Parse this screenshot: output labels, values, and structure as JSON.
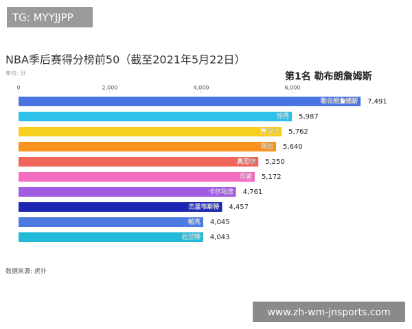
{
  "watermark": "TG: MYYJJPP",
  "footer_watermark": "www.zh-wm-jnsports.com",
  "chart_data": {
    "type": "barh",
    "title": "NBA季后赛得分榜前50（截至2021年5月22日）",
    "unit_label": "单位: 分",
    "highlight": "第1名 勒布朗詹姆斯",
    "source": "数据来源: 虎扑",
    "categories": [
      "勒布朗詹姆斯",
      "乔丹",
      "贾巴尔",
      "科比",
      "奥尼尔",
      "邓肯",
      "卡尔马龙",
      "杰里韦斯特",
      "帕克",
      "杜兰特"
    ],
    "values": [
      7491,
      5987,
      5762,
      5640,
      5250,
      5172,
      4761,
      4457,
      4045,
      4043
    ],
    "value_labels": [
      "7,491",
      "5,987",
      "5,762",
      "5,640",
      "5,250",
      "5,172",
      "4,761",
      "4,457",
      "4,045",
      "4,043"
    ],
    "colors": [
      "#4a74e2",
      "#2fc1ea",
      "#f7d01f",
      "#f8931f",
      "#f0665b",
      "#f26cc0",
      "#a25ce2",
      "#1b26b2",
      "#4c7ae0",
      "#22bad8"
    ],
    "xlim": [
      0,
      8000
    ],
    "xticks": [
      0,
      {
        "value": 2000,
        "label": "2,000"
      },
      {
        "value": 4000,
        "label": "4,000"
      },
      {
        "value": 6000,
        "label": "6,000"
      }
    ]
  }
}
